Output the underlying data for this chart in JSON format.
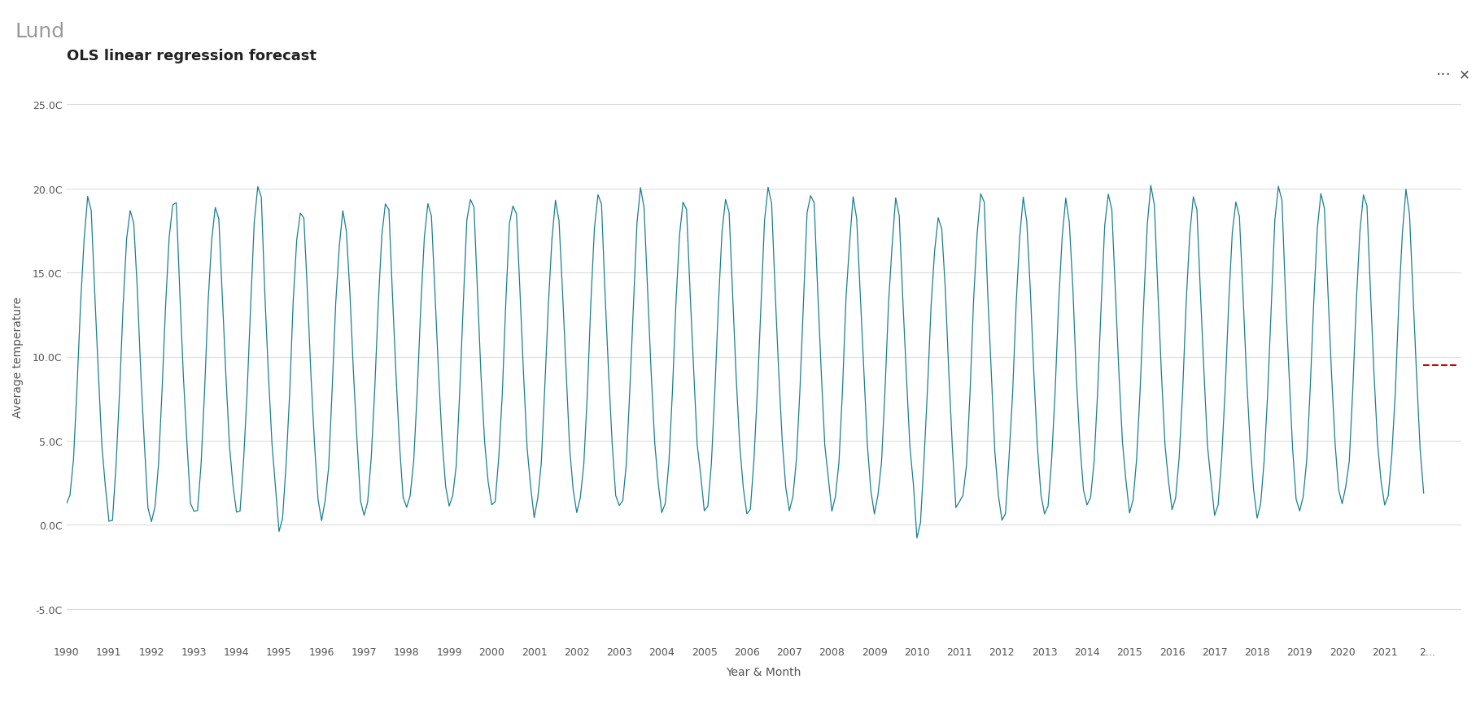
{
  "title": "OLS linear regression forecast",
  "header": "Lund",
  "xlabel": "Year & Month",
  "ylabel": "Average temperature",
  "xlim_start": 1990.0,
  "xlim_end": 2022.8,
  "ylim": [
    -7,
    27
  ],
  "yticks": [
    -5.0,
    0.0,
    5.0,
    10.0,
    15.0,
    20.0,
    25.0
  ],
  "ytick_labels": [
    "-5.0C",
    "0.0C",
    "5.0C",
    "10.0C",
    "15.0C",
    "20.0C",
    "25.0C"
  ],
  "line_color": "#1a7f8e",
  "forecast_color": "#cc0000",
  "background_color": "#ffffff",
  "header_bg": "#f0f0f0",
  "grid_color": "#dddddd",
  "title_fontsize": 13,
  "axis_label_fontsize": 10,
  "tick_fontsize": 9
}
